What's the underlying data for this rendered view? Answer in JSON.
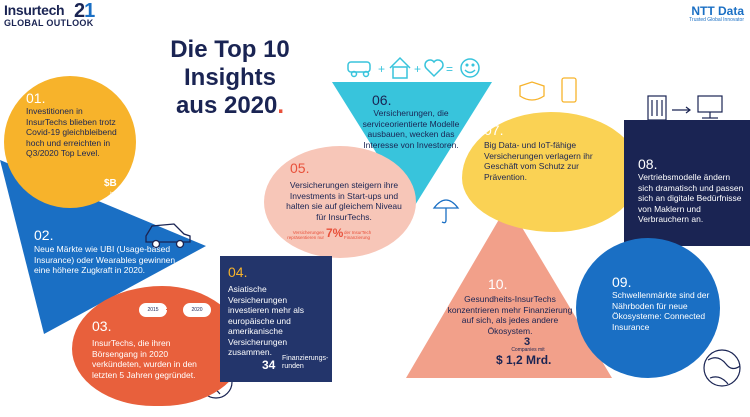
{
  "brand": {
    "logo_main": "Insurtech",
    "logo_sub": "GLOBAL OUTLOOK",
    "logo_year_a": "2",
    "logo_year_b": "1",
    "partner": "NTT Data",
    "partner_tagline": "Trusted Global Innovator"
  },
  "headline": {
    "title_line1": "Die Top 10",
    "title_line2": "Insights",
    "title_line3": "aus 2020",
    "title_dot": "."
  },
  "insights": [
    {
      "num": "01.",
      "text": "Investitionen in InsurTechs blieben trotz Covid-19 gleichbleibend hoch und erreichten in Q3/2020 Top Level.",
      "stat": "$B",
      "stat_sub": "in Q3"
    },
    {
      "num": "02.",
      "text": "Neue Märkte wie UBI (Usage-based Insurance) oder Wearables gewinnen eine höhere Zugkraft in 2020."
    },
    {
      "num": "03.",
      "text": "InsurTechs, die ihren Börsengang in 2020 verkündeten, wurden in den letzten 5 Jahren gegründet.",
      "year_start": "2015",
      "year_end": "2020"
    },
    {
      "num": "04.",
      "text": "Asiatische Versicherungen investieren mehr als europäische und amerikanische Versicherungen zusammen.",
      "stat": "34",
      "stat_label": "Finanzierungs-runden"
    },
    {
      "num": "05.",
      "text": "Versicherungen steigern ihre Investments in Start-ups und halten sie auf gleichem Niveau für InsurTechs.",
      "stat_pre": "Versicherungen repräsentieren nur",
      "stat": "7%",
      "stat_post": "der InsurTech Finanzierung"
    },
    {
      "num": "06.",
      "text": "Versicherungen, die serviceorientierte Modelle ausbauen, wecken das Interesse von Investoren."
    },
    {
      "num": "07.",
      "text": "Big Data- und IoT-fähige Versicherungen verlagern ihr Geschäft vom Schutz zur Prävention."
    },
    {
      "num": "08.",
      "text": "Vertriebsmodelle ändern sich dramatisch und passen sich an digitale Bedürfnisse von Maklern und Verbrauchern an."
    },
    {
      "num": "09.",
      "text": "Schwellenmärkte sind der Nährboden für neue Ökosysteme: Connected Insurance"
    },
    {
      "num": "10.",
      "text": "Gesundheits-InsurTechs konzentrieren mehr Finanzierung auf sich, als jedes andere Ökosystem.",
      "stat_count": "3",
      "stat_count_label": "Companies mit",
      "stat": "$ 1,2 Mrd."
    }
  ],
  "colors": {
    "navy": "#1a2453",
    "yellow": "#f7b32b",
    "light_yellow": "#fad254",
    "blue": "#1a6fc4",
    "cyan": "#38c4dc",
    "salmon": "#f7c6b8",
    "orange_red": "#e8603c",
    "peach": "#f2a08a"
  },
  "icons": [
    "car-icon",
    "house-icon",
    "heart-icon",
    "smile-icon",
    "umbrella-icon",
    "globe-icon",
    "mask-icon",
    "computer-icon",
    "building-icon",
    "smartphone-icon",
    "shield-icon"
  ]
}
